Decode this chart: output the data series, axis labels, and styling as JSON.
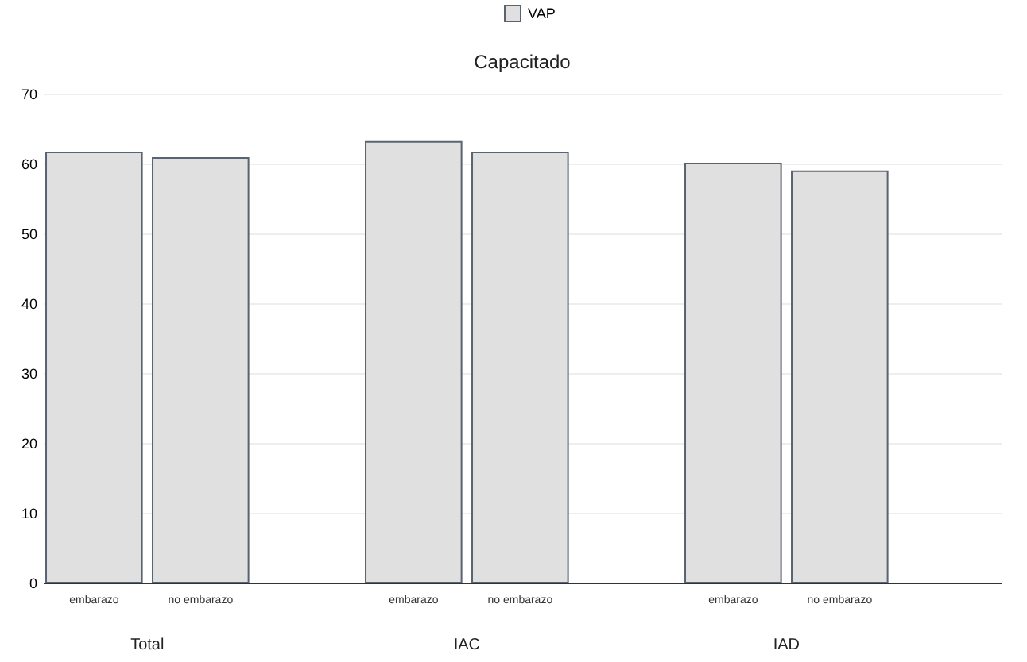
{
  "chart_data": {
    "type": "bar",
    "title": "Capacitado",
    "categories": [
      "embarazo",
      "no embarazo",
      "embarazo",
      "no embarazo",
      "embarazo",
      "no embarazo"
    ],
    "series": [
      {
        "name": "VAP",
        "color": "#e0e0e0",
        "values": [
          61.6,
          60.8,
          63.1,
          61.6,
          60.0,
          58.9
        ]
      }
    ],
    "annotations": [
      "Total",
      "IAC",
      "IAD"
    ],
    "ylim": [
      0,
      70
    ],
    "yticks": [
      0,
      10,
      20,
      30,
      40,
      50,
      60,
      70
    ],
    "grid": "y",
    "legend": "top"
  }
}
